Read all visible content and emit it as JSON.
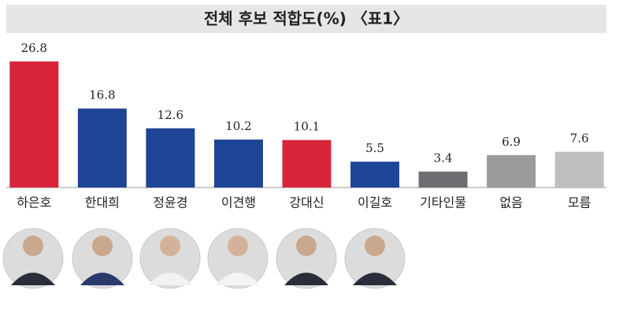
{
  "chart_data": {
    "type": "bar",
    "title": "전체 후보 적합도(%) 〈표1〉",
    "categories": [
      "하은호",
      "한대희",
      "정윤경",
      "이견행",
      "강대신",
      "이길호",
      "기타인물",
      "없음",
      "모름"
    ],
    "values": [
      26.8,
      16.8,
      12.6,
      10.2,
      10.1,
      5.5,
      3.4,
      6.9,
      7.6
    ],
    "value_labels": [
      "26.8",
      "16.8",
      "12.6",
      "10.2",
      "10.1",
      "5.5",
      "3.4",
      "6.9",
      "7.6"
    ],
    "colors": [
      "#d9253a",
      "#1f4597",
      "#1f4597",
      "#1f4597",
      "#d9253a",
      "#1f4597",
      "#6d6e71",
      "#9a9b9d",
      "#bdbec0"
    ]
  }
}
